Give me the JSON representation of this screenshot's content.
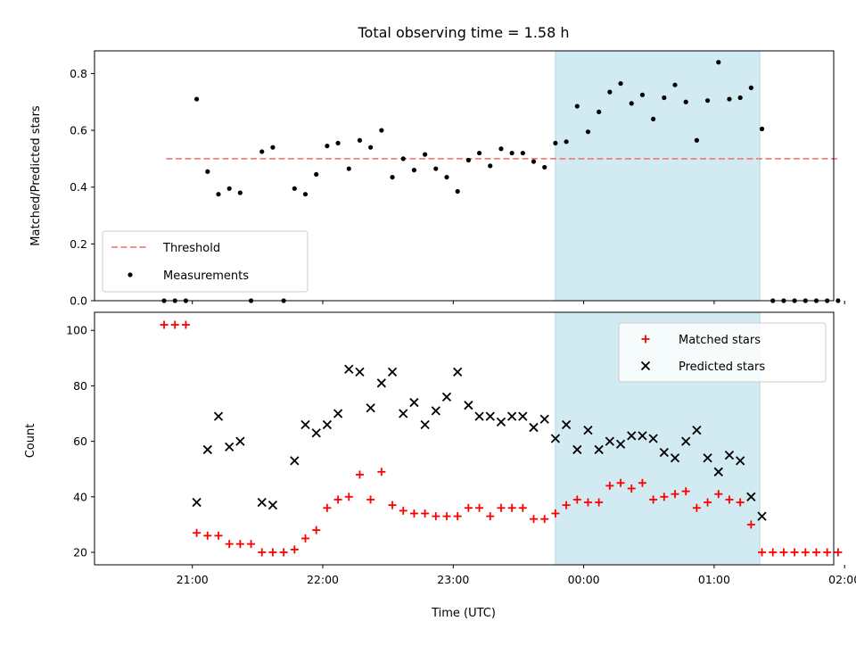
{
  "chart_data": [
    {
      "type": "scatter",
      "title": "Total observing time = 1.58 h",
      "xlabel": "",
      "ylabel": "Matched/Predicted stars",
      "ylim": [
        0,
        0.88
      ],
      "yticks": [
        "0.0",
        "0.2",
        "0.4",
        "0.6",
        "0.8"
      ],
      "ytick_values": [
        0,
        0.2,
        0.4,
        0.6,
        0.8
      ],
      "xlim_minutes": [
        -45,
        295
      ],
      "x_unit": "minutes after 21:00 UTC",
      "highlight_span": {
        "x0": 167,
        "x1": 261,
        "color": "#add8e6"
      },
      "threshold": {
        "name": "Threshold",
        "x0": -12,
        "x1": 298,
        "y": 0.5,
        "color": "#f08080"
      },
      "legend_position": "lower-left",
      "series": [
        {
          "name": "Measurements",
          "color": "#000000",
          "marker": "dot",
          "x": [
            -13,
            -8,
            -3,
            2,
            7,
            12,
            17,
            22,
            27,
            32,
            37,
            42,
            47,
            52,
            57,
            62,
            67,
            72,
            77,
            82,
            87,
            92,
            97,
            102,
            107,
            112,
            117,
            122,
            127,
            132,
            137,
            142,
            147,
            152,
            157,
            162,
            167,
            172,
            177,
            182,
            187,
            192,
            197,
            202,
            207,
            212,
            217,
            222,
            227,
            232,
            237,
            242,
            247,
            252,
            257,
            262,
            267,
            272,
            277,
            282,
            287,
            292,
            297
          ],
          "y": [
            0.0,
            0.0,
            0.0,
            0.71,
            0.455,
            0.375,
            0.395,
            0.38,
            0.0,
            0.525,
            0.54,
            0.0,
            0.395,
            0.375,
            0.445,
            0.545,
            0.555,
            0.465,
            0.565,
            0.54,
            0.6,
            0.435,
            0.5,
            0.46,
            0.515,
            0.465,
            0.435,
            0.385,
            0.495,
            0.52,
            0.475,
            0.535,
            0.52,
            0.52,
            0.49,
            0.47,
            0.555,
            0.56,
            0.685,
            0.595,
            0.665,
            0.735,
            0.765,
            0.695,
            0.725,
            0.64,
            0.715,
            0.76,
            0.7,
            0.565,
            0.705,
            0.84,
            0.71,
            0.715,
            0.75,
            0.605,
            0.0,
            0.0,
            0.0,
            0.0,
            0.0,
            0.0,
            0.0
          ]
        }
      ]
    },
    {
      "type": "scatter",
      "title": "",
      "xlabel": "Time (UTC)",
      "ylabel": "Count",
      "ylim": [
        15.5,
        106.5
      ],
      "yticks": [
        "20",
        "40",
        "60",
        "80",
        "100"
      ],
      "ytick_values": [
        20,
        40,
        60,
        80,
        100
      ],
      "xticks": [
        "21:00",
        "22:00",
        "23:00",
        "00:00",
        "01:00",
        "02:00"
      ],
      "xtick_values": [
        0,
        60,
        120,
        180,
        240,
        300
      ],
      "xlim_minutes": [
        -45,
        295
      ],
      "x_unit": "minutes after 21:00 UTC",
      "highlight_span": {
        "x0": 167,
        "x1": 261,
        "color": "#add8e6"
      },
      "legend_position": "top-right",
      "series": [
        {
          "name": "Matched stars",
          "color": "#ff0000",
          "marker": "plus",
          "x": [
            -13,
            -8,
            -3,
            2,
            7,
            12,
            17,
            22,
            27,
            32,
            37,
            42,
            47,
            52,
            57,
            62,
            67,
            72,
            77,
            82,
            87,
            92,
            97,
            102,
            107,
            112,
            117,
            122,
            127,
            132,
            137,
            142,
            147,
            152,
            157,
            162,
            167,
            172,
            177,
            182,
            187,
            192,
            197,
            202,
            207,
            212,
            217,
            222,
            227,
            232,
            237,
            242,
            247,
            252,
            257,
            262,
            267,
            272,
            277,
            282,
            287,
            292,
            297
          ],
          "y": [
            102,
            102,
            102,
            27,
            26,
            26,
            23,
            23,
            23,
            20,
            20,
            20,
            21,
            25,
            28,
            36,
            39,
            40,
            48,
            39,
            49,
            37,
            35,
            34,
            34,
            33,
            33,
            33,
            36,
            36,
            33,
            36,
            36,
            36,
            32,
            32,
            34,
            37,
            39,
            38,
            38,
            44,
            45,
            43,
            45,
            39,
            40,
            41,
            42,
            36,
            38,
            41,
            39,
            38,
            30,
            20,
            20,
            20,
            20,
            20,
            20,
            20,
            20
          ]
        },
        {
          "name": "Predicted stars",
          "color": "#000000",
          "marker": "x",
          "x": [
            2,
            7,
            12,
            17,
            22,
            32,
            37,
            47,
            52,
            57,
            62,
            67,
            72,
            77,
            82,
            87,
            92,
            97,
            102,
            107,
            112,
            117,
            122,
            127,
            132,
            137,
            142,
            147,
            152,
            157,
            162,
            167,
            172,
            177,
            182,
            187,
            192,
            197,
            202,
            207,
            212,
            217,
            222,
            227,
            232,
            237,
            242,
            247,
            252,
            257,
            262
          ],
          "y": [
            38,
            57,
            69,
            58,
            60,
            38,
            37,
            53,
            66,
            63,
            66,
            70,
            86,
            85,
            72,
            81,
            85,
            70,
            74,
            66,
            71,
            76,
            85,
            73,
            69,
            69,
            67,
            69,
            69,
            65,
            68,
            61,
            66,
            57,
            64,
            57,
            60,
            59,
            62,
            62,
            61,
            56,
            54,
            60,
            64,
            54,
            49,
            55,
            53,
            40,
            33
          ]
        }
      ]
    }
  ]
}
